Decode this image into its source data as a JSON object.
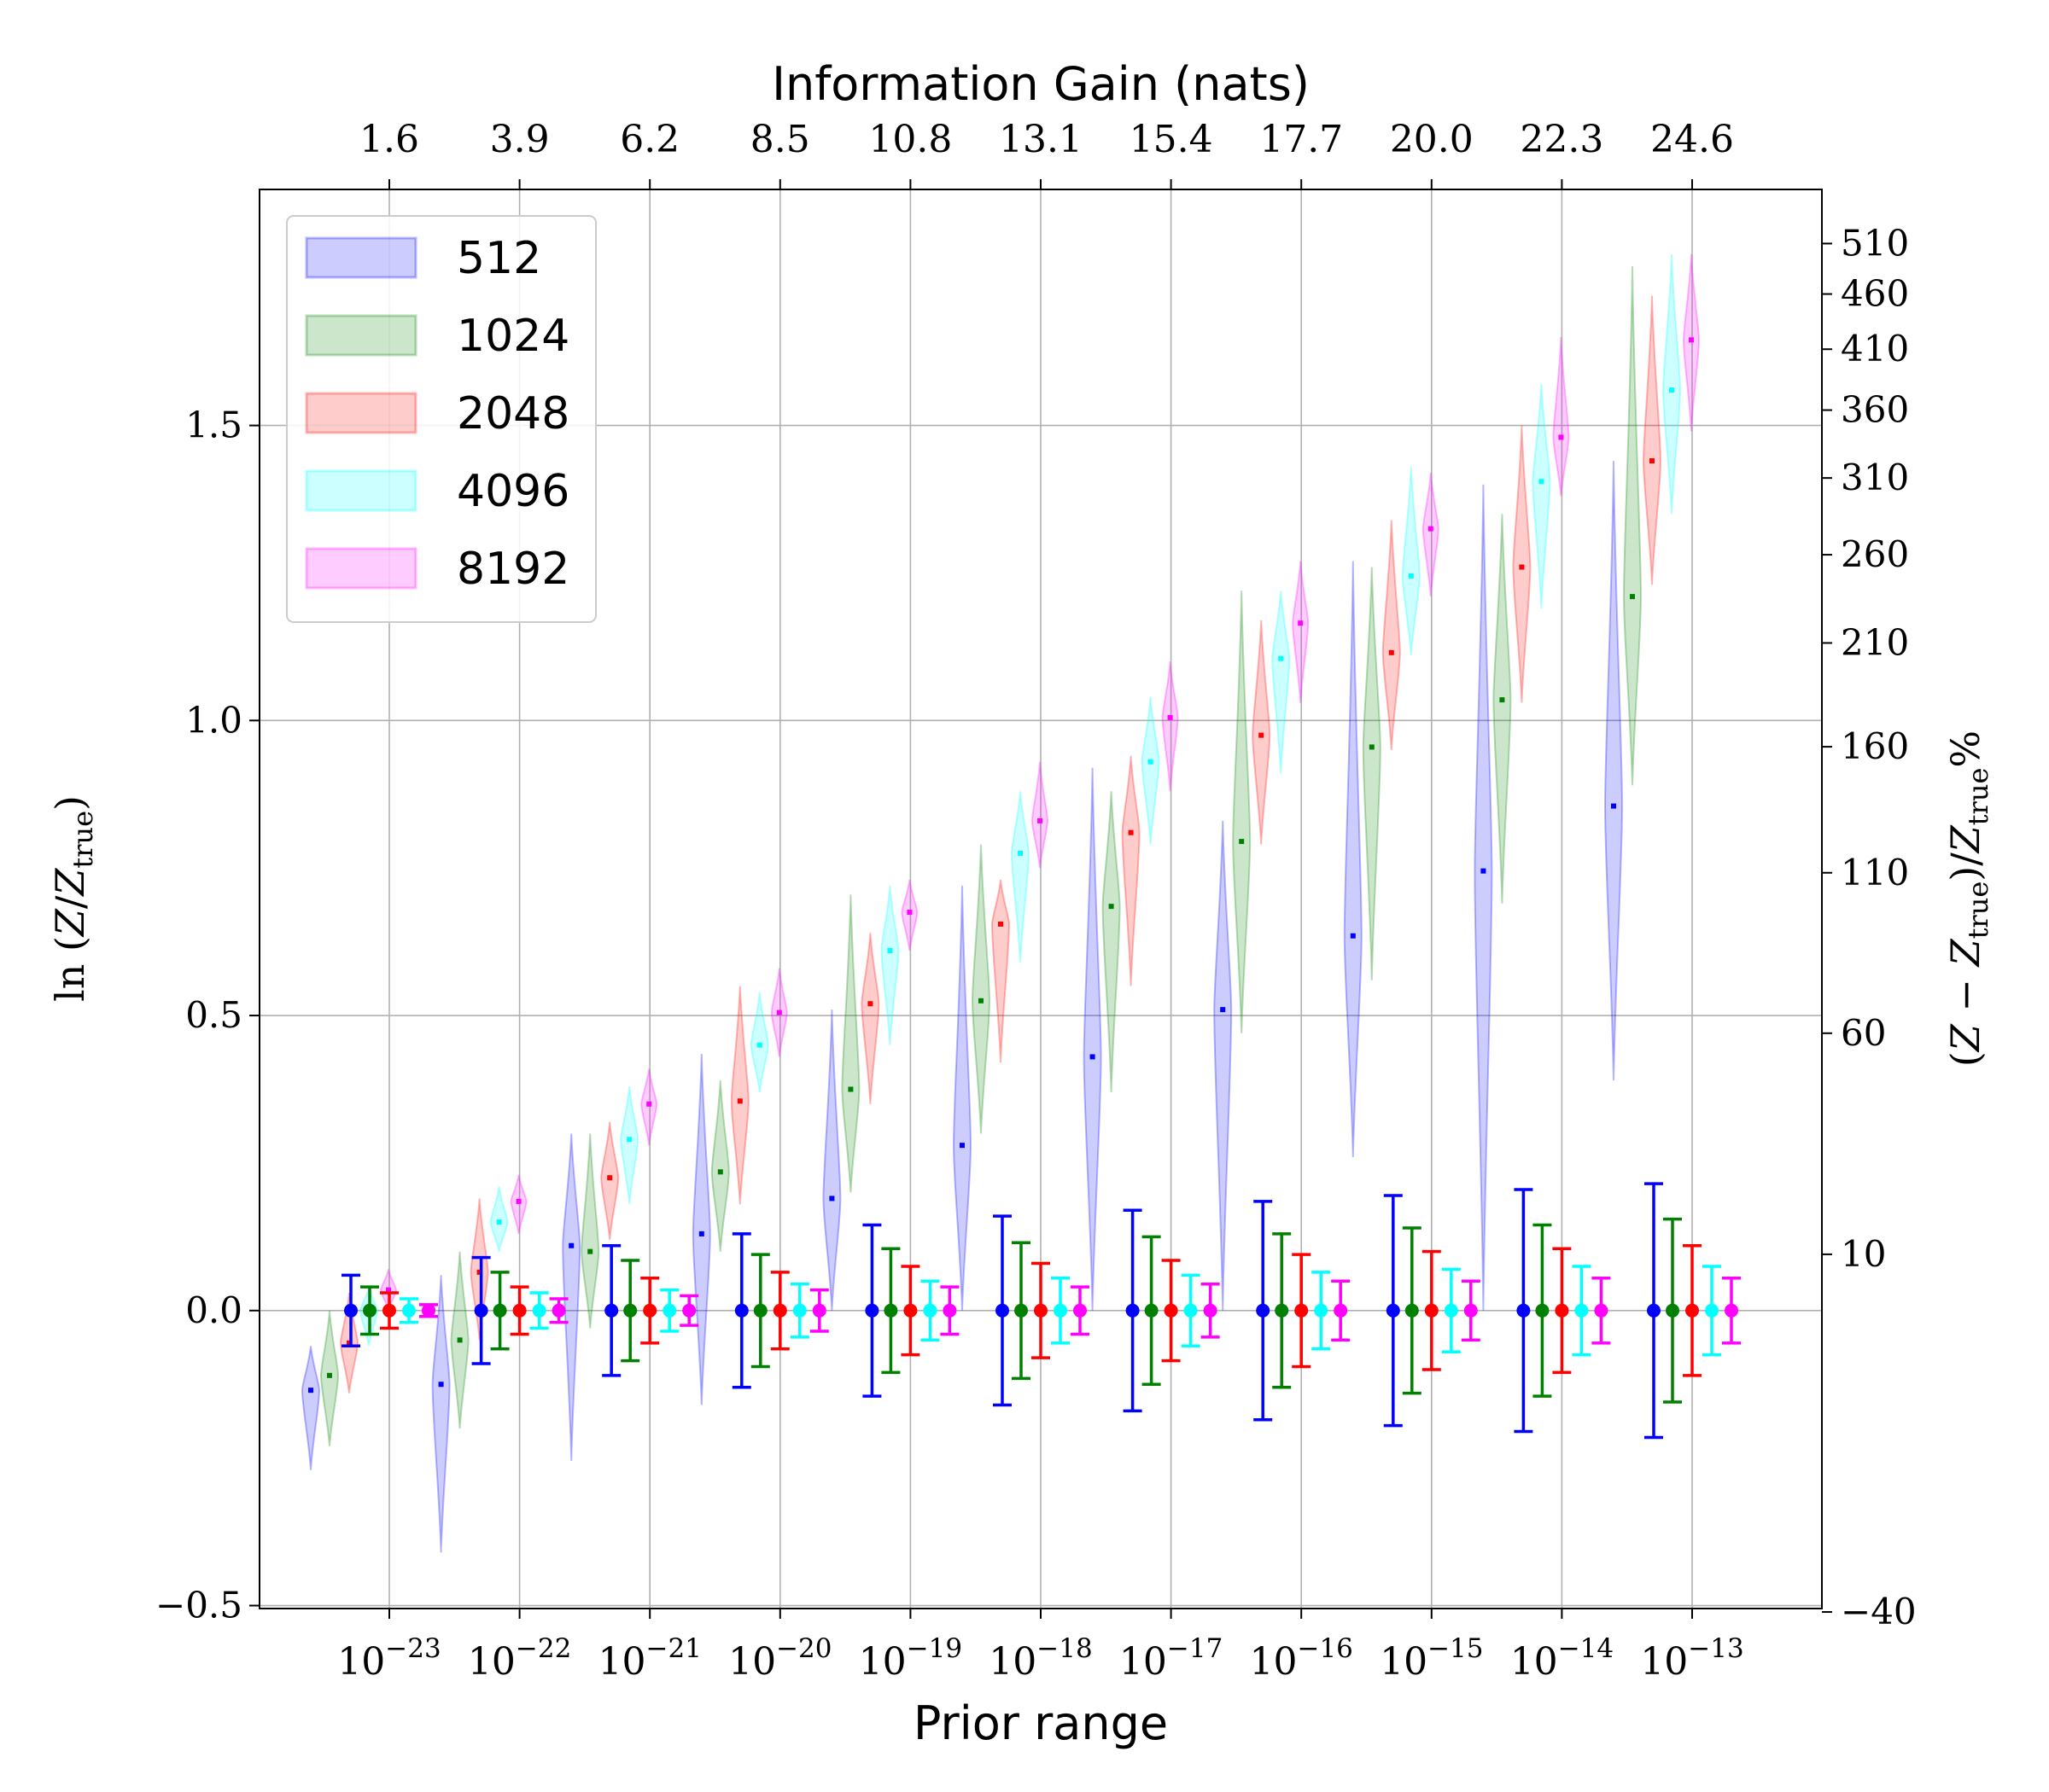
{
  "chart_data": {
    "type": "violin",
    "top_title": "Information Gain (nats)",
    "xlabel": "Prior range",
    "ylabel_left": "ln (Z/Z_true)",
    "ylabel_right": "(Z − Z_true)/Z_true %",
    "categories": [
      "10^-23",
      "10^-22",
      "10^-21",
      "10^-20",
      "10^-19",
      "10^-18",
      "10^-17",
      "10^-16",
      "10^-15",
      "10^-14",
      "10^-13"
    ],
    "category_display": [
      {
        "base": "10",
        "exp": "−23"
      },
      {
        "base": "10",
        "exp": "−22"
      },
      {
        "base": "10",
        "exp": "−21"
      },
      {
        "base": "10",
        "exp": "−20"
      },
      {
        "base": "10",
        "exp": "−19"
      },
      {
        "base": "10",
        "exp": "−18"
      },
      {
        "base": "10",
        "exp": "−17"
      },
      {
        "base": "10",
        "exp": "−16"
      },
      {
        "base": "10",
        "exp": "−15"
      },
      {
        "base": "10",
        "exp": "−14"
      },
      {
        "base": "10",
        "exp": "−13"
      }
    ],
    "info_gain_ticks": [
      "1.6",
      "3.9",
      "6.2",
      "8.5",
      "10.8",
      "13.1",
      "15.4",
      "17.7",
      "20.0",
      "22.3",
      "24.6"
    ],
    "ylim": [
      -0.505,
      1.9
    ],
    "yticks": [
      -0.5,
      0.0,
      0.5,
      1.0,
      1.5
    ],
    "ytick_labels": [
      "−0.5",
      "0.0",
      "0.5",
      "1.0",
      "1.5"
    ],
    "right_ticks": [
      {
        "value": -40,
        "label": "−40"
      },
      {
        "value": 10,
        "label": "10"
      },
      {
        "value": 60,
        "label": "60"
      },
      {
        "value": 110,
        "label": "110"
      },
      {
        "value": 160,
        "label": "160"
      },
      {
        "value": 210,
        "label": "210"
      },
      {
        "value": 260,
        "label": "260"
      },
      {
        "value": 310,
        "label": "310"
      },
      {
        "value": 360,
        "label": "360"
      },
      {
        "value": 410,
        "label": "410"
      },
      {
        "value": 460,
        "label": "460"
      },
      {
        "value": 510,
        "label": "510"
      }
    ],
    "grid": true,
    "legend_position": "top-left",
    "series": [
      {
        "name": "512",
        "color": "#0000ff",
        "medians": [
          -0.135,
          -0.125,
          0.11,
          0.13,
          0.19,
          0.28,
          0.43,
          0.51,
          0.635,
          0.745,
          0.855
        ],
        "vmin": [
          -0.27,
          -0.41,
          -0.255,
          -0.16,
          0.0,
          0.0,
          0.0,
          0.0,
          0.26,
          0.0,
          0.39
        ],
        "vmax": [
          -0.06,
          0.06,
          0.3,
          0.435,
          0.51,
          0.72,
          0.92,
          0.83,
          1.27,
          1.4,
          1.44
        ],
        "err": [
          0.06,
          0.09,
          0.11,
          0.13,
          0.145,
          0.16,
          0.17,
          0.185,
          0.195,
          0.205,
          0.215
        ]
      },
      {
        "name": "1024",
        "color": "#008000",
        "medians": [
          -0.11,
          -0.05,
          0.1,
          0.235,
          0.375,
          0.525,
          0.685,
          0.795,
          0.955,
          1.035,
          1.21
        ],
        "vmin": [
          -0.23,
          -0.2,
          -0.03,
          0.1,
          0.2,
          0.3,
          0.37,
          0.47,
          0.56,
          0.69,
          0.89
        ],
        "vmax": [
          0.0,
          0.1,
          0.3,
          0.39,
          0.705,
          0.79,
          0.88,
          1.22,
          1.26,
          1.35,
          1.77
        ],
        "err": [
          0.04,
          0.065,
          0.085,
          0.095,
          0.105,
          0.115,
          0.125,
          0.13,
          0.14,
          0.145,
          0.155
        ]
      },
      {
        "name": "2048",
        "color": "#ff0000",
        "medians": [
          -0.055,
          0.065,
          0.225,
          0.355,
          0.52,
          0.655,
          0.81,
          0.975,
          1.115,
          1.26,
          1.44
        ],
        "vmin": [
          -0.14,
          -0.05,
          0.12,
          0.18,
          0.35,
          0.42,
          0.55,
          0.79,
          0.95,
          1.03,
          1.23
        ],
        "vmax": [
          0.03,
          0.19,
          0.32,
          0.55,
          0.64,
          0.73,
          0.94,
          1.17,
          1.34,
          1.5,
          1.72
        ],
        "err": [
          0.03,
          0.04,
          0.055,
          0.065,
          0.075,
          0.08,
          0.085,
          0.095,
          0.1,
          0.105,
          0.11
        ]
      },
      {
        "name": "4096",
        "color": "#00ffff",
        "medians": [
          0.0,
          0.15,
          0.29,
          0.45,
          0.61,
          0.775,
          0.93,
          1.105,
          1.245,
          1.405,
          1.56
        ],
        "vmin": [
          -0.06,
          0.1,
          0.18,
          0.37,
          0.45,
          0.59,
          0.79,
          0.91,
          1.11,
          1.19,
          1.35
        ],
        "vmax": [
          0.04,
          0.21,
          0.38,
          0.54,
          0.72,
          0.88,
          1.04,
          1.22,
          1.43,
          1.57,
          1.79
        ],
        "err": [
          0.02,
          0.03,
          0.035,
          0.045,
          0.05,
          0.055,
          0.06,
          0.065,
          0.07,
          0.075,
          0.075
        ]
      },
      {
        "name": "8192",
        "color": "#ff00ff",
        "medians": [
          0.035,
          0.185,
          0.35,
          0.505,
          0.675,
          0.83,
          1.005,
          1.165,
          1.325,
          1.48,
          1.645
        ],
        "vmin": [
          0.0,
          0.13,
          0.28,
          0.43,
          0.61,
          0.75,
          0.88,
          1.03,
          1.21,
          1.38,
          1.49
        ],
        "vmax": [
          0.07,
          0.23,
          0.41,
          0.58,
          0.73,
          0.93,
          1.1,
          1.27,
          1.42,
          1.65,
          1.79
        ],
        "err": [
          0.01,
          0.02,
          0.025,
          0.035,
          0.04,
          0.04,
          0.045,
          0.05,
          0.05,
          0.055,
          0.055
        ]
      }
    ]
  }
}
